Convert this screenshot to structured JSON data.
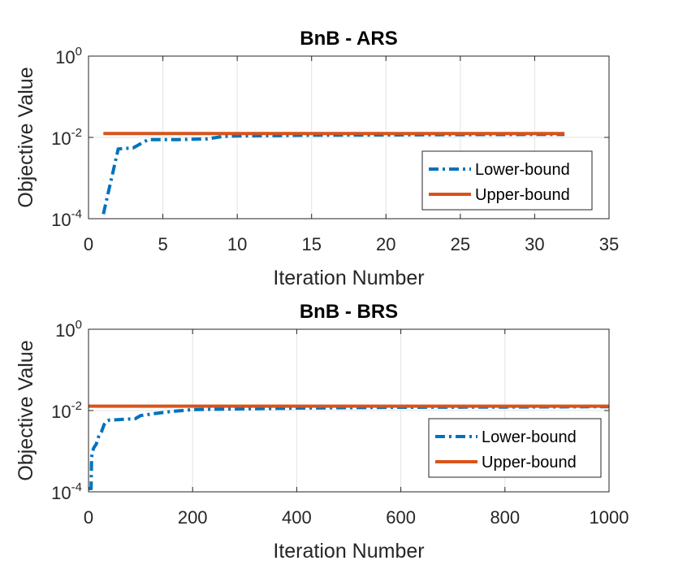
{
  "chart_data": [
    {
      "type": "line",
      "title": "BnB - ARS",
      "xlabel": "Iteration Number",
      "ylabel": "Objective Value",
      "xlim": [
        0,
        35
      ],
      "xticks": [
        0,
        5,
        10,
        15,
        20,
        25,
        30,
        35
      ],
      "ylim": [
        0.0001,
        1
      ],
      "yscale": "log",
      "yticks": [
        {
          "value": 0.0001,
          "base": "10",
          "exp": "-4"
        },
        {
          "value": 0.01,
          "base": "10",
          "exp": "-2"
        },
        {
          "value": 1,
          "base": "10",
          "exp": "0"
        }
      ],
      "grid": true,
      "legend_position": "right",
      "series": [
        {
          "name": "Lower-bound",
          "color": "#0072BD",
          "style": "dash-dot",
          "x": [
            1,
            2,
            3,
            4,
            5,
            6,
            7,
            8,
            9,
            10,
            12,
            15,
            20,
            25,
            30,
            32
          ],
          "y": [
            0.00013,
            0.0052,
            0.0055,
            0.0088,
            0.0088,
            0.0088,
            0.009,
            0.0092,
            0.0105,
            0.0108,
            0.011,
            0.0113,
            0.0115,
            0.0117,
            0.0118,
            0.0118
          ]
        },
        {
          "name": "Upper-bound",
          "color": "#D95319",
          "style": "solid",
          "x": [
            1,
            32
          ],
          "y": [
            0.0125,
            0.0125
          ]
        }
      ]
    },
    {
      "type": "line",
      "title": "BnB - BRS",
      "xlabel": "Iteration Number",
      "ylabel": "Objective Value",
      "xlim": [
        0,
        1000
      ],
      "xticks": [
        0,
        200,
        400,
        600,
        800,
        1000
      ],
      "ylim": [
        0.0001,
        1
      ],
      "yscale": "log",
      "yticks": [
        {
          "value": 0.0001,
          "base": "10",
          "exp": "-4"
        },
        {
          "value": 0.01,
          "base": "10",
          "exp": "-2"
        },
        {
          "value": 1,
          "base": "10",
          "exp": "0"
        }
      ],
      "grid": true,
      "legend_position": "right",
      "series": [
        {
          "name": "Lower-bound",
          "color": "#0072BD",
          "style": "dash-dot",
          "x": [
            0,
            5,
            6,
            8,
            10,
            15,
            20,
            25,
            30,
            35,
            40,
            60,
            90,
            100,
            130,
            160,
            200,
            300,
            400,
            600,
            800,
            1000
          ],
          "y": [
            0.00012,
            0.00012,
            0.0007,
            0.001,
            0.0012,
            0.0015,
            0.0024,
            0.003,
            0.0045,
            0.0055,
            0.0058,
            0.006,
            0.0063,
            0.0075,
            0.0085,
            0.0095,
            0.0105,
            0.011,
            0.0115,
            0.012,
            0.0122,
            0.0125
          ]
        },
        {
          "name": "Upper-bound",
          "color": "#D95319",
          "style": "solid",
          "x": [
            0,
            1000
          ],
          "y": [
            0.0128,
            0.0128
          ]
        }
      ]
    }
  ]
}
